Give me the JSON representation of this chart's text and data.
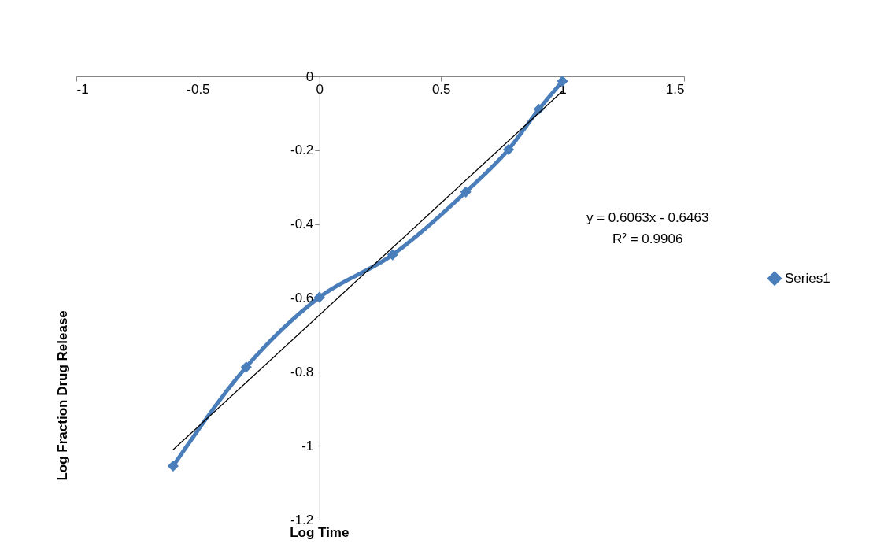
{
  "chart_data": {
    "type": "line",
    "xlabel": "Log Time",
    "ylabel": "Log Fraction Drug Release",
    "xlim": [
      -1,
      1.5
    ],
    "xticks": [
      -1,
      -0.5,
      0,
      0.5,
      1,
      1.5
    ],
    "ylim": [
      -1.2,
      0
    ],
    "yticks": [
      0,
      -0.2,
      -0.4,
      -0.6,
      -0.8,
      -1,
      -1.2
    ],
    "grid": false,
    "legend": "right",
    "marker": "diamond",
    "line_style": "solid",
    "annotations": [
      "y = 0.6063x - 0.6463",
      "R² = 0.9906"
    ],
    "series": [
      {
        "name": "Series1",
        "color": "#4a7ebb",
        "x": [
          -0.602,
          -0.301,
          0,
          0.301,
          0.602,
          0.778,
          0.903,
          1
        ],
        "values": [
          -1.055,
          -0.787,
          -0.598,
          -0.483,
          -0.313,
          -0.198,
          -0.089,
          -0.013
        ]
      },
      {
        "type": "line",
        "color": "#000000",
        "marker": "none",
        "x": [
          -0.602,
          1
        ],
        "values": [
          -1.011,
          -0.04
        ]
      }
    ]
  }
}
